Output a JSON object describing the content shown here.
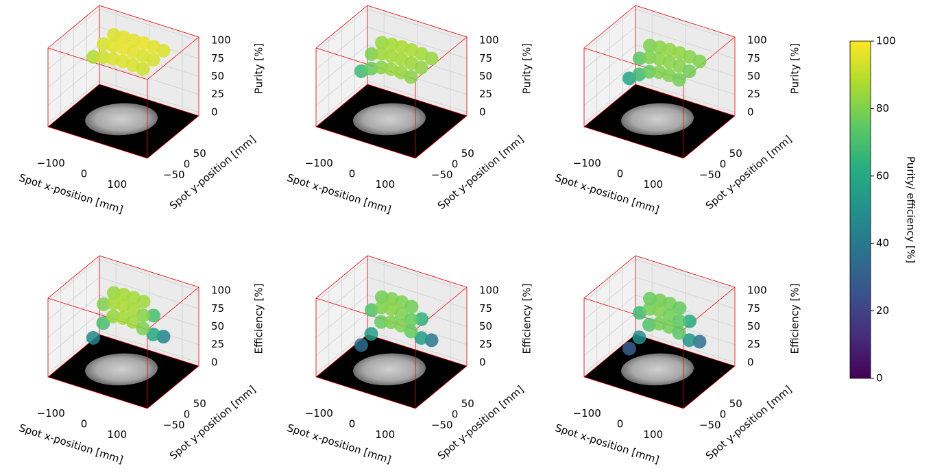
{
  "chart_data": [
    {
      "type": "scatter3d",
      "xlabel": "Spot x-position [mm]",
      "ylabel": "Spot y-position [mm]",
      "zlabel": "Purity [%]",
      "xlim": [
        -150,
        150
      ],
      "ylim": [
        -100,
        100
      ],
      "zlim": [
        -5,
        105
      ],
      "xticks": [
        {
          "value": -100,
          "label": "−100"
        },
        0,
        100
      ],
      "yticks": [
        {
          "value": -50,
          "label": "−50"
        },
        0,
        50
      ],
      "zticks": [
        0,
        25,
        50,
        75,
        100
      ],
      "x": [
        -60,
        -30,
        0,
        30,
        60,
        90,
        -60,
        -30,
        0,
        30,
        60,
        90,
        -60,
        -30,
        0,
        30,
        60,
        90
      ],
      "y": [
        40,
        40,
        40,
        40,
        40,
        40,
        0,
        0,
        0,
        0,
        0,
        0,
        -40,
        -40,
        -40,
        -40,
        -40,
        -40
      ],
      "z": [
        95,
        96,
        96,
        97,
        96,
        95,
        94,
        96,
        97,
        96,
        95,
        94,
        88,
        92,
        94,
        95,
        94,
        93
      ]
    },
    {
      "type": "scatter3d",
      "xlabel": "Spot x-position [mm]",
      "ylabel": "Spot y-position [mm]",
      "zlabel": "Purity [%]",
      "xlim": [
        -150,
        150
      ],
      "ylim": [
        -100,
        100
      ],
      "zlim": [
        -5,
        105
      ],
      "xticks": [
        {
          "value": -100,
          "label": "−100"
        },
        0,
        100
      ],
      "yticks": [
        {
          "value": -50,
          "label": "−50"
        },
        0,
        50
      ],
      "zticks": [
        0,
        25,
        50,
        75,
        100
      ],
      "x": [
        -60,
        -30,
        0,
        30,
        60,
        90,
        -60,
        -30,
        0,
        30,
        60,
        90,
        -60,
        -30,
        0,
        30,
        60,
        90
      ],
      "y": [
        40,
        40,
        40,
        40,
        40,
        40,
        0,
        0,
        0,
        0,
        0,
        0,
        -40,
        -40,
        -40,
        -40,
        -40,
        -40
      ],
      "z": [
        84,
        86,
        87,
        87,
        86,
        84,
        80,
        85,
        86,
        86,
        85,
        83,
        68,
        76,
        82,
        84,
        84,
        82
      ]
    },
    {
      "type": "scatter3d",
      "xlabel": "Spot x-position [mm]",
      "ylabel": "Spot y-position [mm]",
      "zlabel": "Purity [%]",
      "xlim": [
        -150,
        150
      ],
      "ylim": [
        -100,
        100
      ],
      "zlim": [
        -5,
        105
      ],
      "xticks": [
        {
          "value": -100,
          "label": "−100"
        },
        0,
        100
      ],
      "yticks": [
        {
          "value": -50,
          "label": "−50"
        },
        0,
        50
      ],
      "zticks": [
        0,
        25,
        50,
        75,
        100
      ],
      "x": [
        -60,
        -30,
        0,
        30,
        60,
        90,
        -60,
        -30,
        0,
        30,
        60,
        90,
        -60,
        -30,
        0,
        30,
        60,
        90
      ],
      "y": [
        40,
        40,
        40,
        40,
        40,
        40,
        0,
        0,
        0,
        0,
        0,
        0,
        -40,
        -40,
        -40,
        -40,
        -40,
        -40
      ],
      "z": [
        80,
        82,
        83,
        83,
        82,
        80,
        74,
        80,
        82,
        82,
        81,
        78,
        58,
        68,
        76,
        80,
        80,
        78
      ]
    },
    {
      "type": "scatter3d",
      "xlabel": "Spot x-position [mm]",
      "ylabel": "Spot y-position [mm]",
      "zlabel": "Efficiency [%]",
      "xlim": [
        -150,
        150
      ],
      "ylim": [
        -100,
        100
      ],
      "zlim": [
        -5,
        105
      ],
      "xticks": [
        {
          "value": -100,
          "label": "−100"
        },
        0,
        100
      ],
      "yticks": [
        {
          "value": -50,
          "label": "−50"
        },
        0,
        50
      ],
      "zticks": [
        0,
        25,
        50,
        75,
        100
      ],
      "x": [
        -60,
        -30,
        0,
        30,
        60,
        90,
        -60,
        -30,
        0,
        30,
        60,
        90,
        -60,
        -30,
        0,
        30,
        60,
        90
      ],
      "y": [
        40,
        40,
        40,
        40,
        40,
        40,
        0,
        0,
        0,
        0,
        0,
        0,
        -40,
        -40,
        -40,
        -40,
        -40,
        -40
      ],
      "z": [
        84,
        86,
        86,
        85,
        70,
        45,
        80,
        86,
        87,
        86,
        82,
        60,
        45,
        70,
        84,
        86,
        85,
        80
      ]
    },
    {
      "type": "scatter3d",
      "xlabel": "Spot x-position [mm]",
      "ylabel": "Spot y-position [mm]",
      "zlabel": "Efficiency [%]",
      "xlim": [
        -150,
        150
      ],
      "ylim": [
        -100,
        100
      ],
      "zlim": [
        -5,
        105
      ],
      "xticks": [
        {
          "value": -100,
          "label": "−100"
        },
        0,
        100
      ],
      "yticks": [
        {
          "value": -50,
          "label": "−50"
        },
        0,
        50
      ],
      "zticks": [
        0,
        25,
        50,
        75,
        100
      ],
      "x": [
        -60,
        -30,
        0,
        30,
        60,
        90,
        -60,
        -30,
        0,
        30,
        60,
        90,
        -60,
        -30,
        0,
        30,
        60,
        90
      ],
      "y": [
        40,
        40,
        40,
        40,
        40,
        40,
        0,
        0,
        0,
        0,
        0,
        0,
        -40,
        -40,
        -40,
        -40,
        -40,
        -40
      ],
      "z": [
        78,
        80,
        80,
        78,
        65,
        40,
        72,
        80,
        82,
        80,
        76,
        55,
        35,
        55,
        76,
        80,
        80,
        76
      ]
    },
    {
      "type": "scatter3d",
      "xlabel": "Spot x-position [mm]",
      "ylabel": "Spot y-position [mm]",
      "zlabel": "Efficiency [%]",
      "xlim": [
        -150,
        150
      ],
      "ylim": [
        -100,
        100
      ],
      "zlim": [
        -5,
        105
      ],
      "xticks": [
        {
          "value": -100,
          "label": "−100"
        },
        0,
        100
      ],
      "yticks": [
        {
          "value": -50,
          "label": "−50"
        },
        0,
        50
      ],
      "zticks": [
        0,
        25,
        50,
        75,
        100
      ],
      "x": [
        -60,
        -30,
        0,
        30,
        60,
        90,
        -60,
        -30,
        0,
        30,
        60,
        90,
        -60,
        -30,
        0,
        30,
        60,
        90
      ],
      "y": [
        40,
        40,
        40,
        40,
        40,
        40,
        0,
        0,
        0,
        0,
        0,
        0,
        -40,
        -40,
        -40,
        -40,
        -40,
        -40
      ],
      "z": [
        76,
        78,
        78,
        76,
        62,
        38,
        68,
        78,
        80,
        78,
        74,
        52,
        30,
        50,
        72,
        78,
        78,
        74
      ]
    },
    {
      "type": "colorbar",
      "label": "Purity/ efficiency [%]",
      "colormap": "viridis",
      "lim": [
        0,
        100
      ],
      "ticks": [
        0,
        20,
        40,
        60,
        80,
        100
      ]
    }
  ]
}
